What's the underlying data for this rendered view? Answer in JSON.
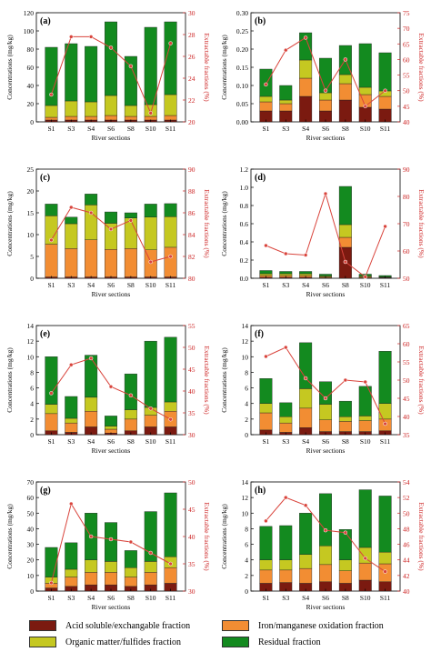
{
  "colors": {
    "acid": "#7b1a10",
    "iron": "#f28d33",
    "organic": "#c5c821",
    "residual": "#138a1f",
    "line": "#d9443c",
    "right_axis": "#cc2222"
  },
  "legend": {
    "acid": "Acid soluble/exchangable fraction",
    "iron": "Iron/manganese oxidation fraction",
    "organic": "Organic matter/fulfides fraction",
    "residual": "Residual fraction"
  },
  "chart_data": [
    {
      "type": "bar",
      "panel_label": "(a)",
      "categories": [
        "S1",
        "S3",
        "S4",
        "S6",
        "S8",
        "S10",
        "S11"
      ],
      "ylabel": "Concentrations (mg/kg)",
      "y2label": "Extractable fractions (%)",
      "xlabel": "River sections",
      "ylim": [
        0,
        120
      ],
      "yticks": [
        0,
        20,
        40,
        60,
        80,
        100,
        120
      ],
      "y2lim": [
        20,
        30
      ],
      "y2ticks": [
        20,
        22,
        24,
        26,
        28,
        30
      ],
      "stacks": {
        "acid": [
          2,
          2,
          2,
          2,
          2,
          2,
          2
        ],
        "iron": [
          3,
          4,
          4,
          5,
          4,
          4,
          5
        ],
        "organic": [
          13,
          17,
          16,
          22,
          12,
          13,
          23
        ],
        "residual": [
          64,
          63,
          61,
          81,
          54,
          85,
          80
        ]
      },
      "line": [
        22.5,
        27.8,
        27.8,
        26.8,
        25.1,
        20.8,
        27.2
      ]
    },
    {
      "type": "bar",
      "panel_label": "(b)",
      "categories": [
        "S1",
        "S3",
        "S4",
        "S6",
        "S8",
        "S10",
        "S11"
      ],
      "ylabel": "Concentrations (mg/kg)",
      "y2label": "Extractable fractions (%)",
      "xlabel": "River sections",
      "ylim": [
        0,
        0.3
      ],
      "yticks": [
        0.0,
        0.05,
        0.1,
        0.15,
        0.2,
        0.25,
        0.3
      ],
      "y2lim": [
        40,
        75
      ],
      "y2ticks": [
        40,
        45,
        50,
        55,
        60,
        65,
        70,
        75
      ],
      "stacks": {
        "acid": [
          0.03,
          0.03,
          0.07,
          0.03,
          0.06,
          0.04,
          0.035
        ],
        "iron": [
          0.025,
          0.02,
          0.05,
          0.03,
          0.045,
          0.035,
          0.035
        ],
        "organic": [
          0.015,
          0.01,
          0.05,
          0.02,
          0.025,
          0.02,
          0.015
        ],
        "residual": [
          0.075,
          0.04,
          0.075,
          0.095,
          0.08,
          0.12,
          0.105
        ]
      },
      "line": [
        52,
        63,
        67,
        50,
        60,
        45,
        50
      ]
    },
    {
      "type": "bar",
      "panel_label": "(c)",
      "categories": [
        "S1",
        "S3",
        "S4",
        "S6",
        "S8",
        "S10",
        "S11"
      ],
      "ylabel": "Concentrations (mg/kg)",
      "y2label": "Extractable fractions (%)",
      "xlabel": "River sections",
      "ylim": [
        0,
        25
      ],
      "yticks": [
        0,
        5,
        10,
        15,
        20,
        25
      ],
      "y2lim": [
        80,
        90
      ],
      "y2ticks": [
        80,
        82,
        84,
        86,
        88,
        90
      ],
      "stacks": {
        "acid": [
          0.3,
          0.3,
          0.3,
          0.3,
          0.3,
          0.3,
          0.3
        ],
        "iron": [
          7.5,
          6.5,
          8.5,
          6.3,
          6.5,
          6.2,
          6.8
        ],
        "organic": [
          6.5,
          5.7,
          8.0,
          6.0,
          7.0,
          7.5,
          7.0
        ],
        "residual": [
          2.7,
          1.5,
          2.5,
          2.6,
          1.2,
          3.0,
          3.0
        ]
      },
      "line": [
        83.5,
        86.5,
        86.0,
        84.5,
        85.3,
        81.5,
        82.0
      ]
    },
    {
      "type": "bar",
      "panel_label": "(d)",
      "categories": [
        "S1",
        "S3",
        "S4",
        "S6",
        "S8",
        "S10",
        "S11"
      ],
      "ylabel": "Concentrations (mg/kg)",
      "y2label": "Extractable fractions (%)",
      "xlabel": "River sections",
      "ylim": [
        0,
        1.2
      ],
      "yticks": [
        0.0,
        0.2,
        0.4,
        0.6,
        0.8,
        1.0,
        1.2
      ],
      "y2lim": [
        50,
        90
      ],
      "y2ticks": [
        50,
        60,
        70,
        80,
        90
      ],
      "stacks": {
        "acid": [
          0.01,
          0.01,
          0.01,
          0.005,
          0.34,
          0.005,
          0.005
        ],
        "iron": [
          0.02,
          0.02,
          0.02,
          0.01,
          0.11,
          0.01,
          0.005
        ],
        "organic": [
          0.02,
          0.02,
          0.02,
          0.01,
          0.14,
          0.01,
          0.005
        ],
        "residual": [
          0.035,
          0.025,
          0.025,
          0.02,
          0.42,
          0.02,
          0.015
        ]
      },
      "line": [
        62,
        59,
        58.5,
        81,
        56,
        50.5,
        69
      ]
    },
    {
      "type": "bar",
      "panel_label": "(e)",
      "categories": [
        "S1",
        "S3",
        "S4",
        "S6",
        "S8",
        "S10",
        "S11"
      ],
      "ylabel": "Concentrations (mg/kg)",
      "y2label": "Extractable fractions (%)",
      "xlabel": "River sections",
      "ylim": [
        0,
        14
      ],
      "yticks": [
        0,
        2,
        4,
        6,
        8,
        10,
        12,
        14
      ],
      "y2lim": [
        30,
        55
      ],
      "y2ticks": [
        30,
        35,
        40,
        45,
        50,
        55
      ],
      "stacks": {
        "acid": [
          0.5,
          0.3,
          1.0,
          0.2,
          0.5,
          1.0,
          1.0
        ],
        "iron": [
          2.2,
          1.2,
          2.0,
          0.5,
          1.5,
          1.5,
          2.0
        ],
        "organic": [
          1.2,
          0.6,
          1.8,
          0.4,
          1.2,
          1.0,
          1.2
        ],
        "residual": [
          6.1,
          2.8,
          5.4,
          1.3,
          4.6,
          8.5,
          8.3
        ]
      },
      "line": [
        39.5,
        46,
        47.5,
        41,
        39,
        36,
        33.5
      ]
    },
    {
      "type": "bar",
      "panel_label": "(f)",
      "categories": [
        "S1",
        "S3",
        "S4",
        "S6",
        "S8",
        "S10",
        "S11"
      ],
      "ylabel": "Concentrations (mg/kg)",
      "y2label": "Extractable fractions (%)",
      "xlabel": "River sections",
      "ylim": [
        0,
        14
      ],
      "yticks": [
        0,
        2,
        4,
        6,
        8,
        10,
        12,
        14
      ],
      "y2lim": [
        35,
        65
      ],
      "y2ticks": [
        35,
        40,
        45,
        50,
        55,
        60,
        65
      ],
      "stacks": {
        "acid": [
          0.6,
          0.3,
          0.9,
          0.4,
          0.4,
          0.4,
          0.5
        ],
        "iron": [
          2.2,
          1.2,
          2.5,
          1.5,
          1.3,
          1.4,
          1.5
        ],
        "organic": [
          1.2,
          0.8,
          2.5,
          2.0,
          0.6,
          0.6,
          2.0
        ],
        "residual": [
          3.2,
          1.8,
          5.9,
          2.9,
          2.0,
          3.8,
          6.7
        ]
      },
      "line": [
        56.5,
        59,
        50.5,
        45,
        50,
        49.5,
        38
      ]
    },
    {
      "type": "bar",
      "panel_label": "(g)",
      "categories": [
        "S1",
        "S3",
        "S4",
        "S6",
        "S8",
        "S10",
        "S11"
      ],
      "ylabel": "Concentrations (mg/kg)",
      "y2label": "Extractable fractions (%)",
      "xlabel": "River sections",
      "ylim": [
        0,
        70
      ],
      "yticks": [
        0,
        10,
        20,
        30,
        40,
        50,
        60,
        70
      ],
      "y2lim": [
        30,
        50
      ],
      "y2ticks": [
        30,
        35,
        40,
        45,
        50
      ],
      "stacks": {
        "acid": [
          2,
          3,
          4,
          4,
          3,
          4,
          5
        ],
        "iron": [
          3,
          6,
          8,
          8,
          6,
          8,
          10
        ],
        "organic": [
          4,
          5,
          8,
          7,
          6,
          7,
          7
        ],
        "residual": [
          19,
          17,
          30,
          25,
          11,
          32,
          41
        ]
      },
      "line": [
        31.5,
        46,
        40,
        39.5,
        39,
        37,
        35
      ]
    },
    {
      "type": "bar",
      "panel_label": "(h)",
      "categories": [
        "S1",
        "S3",
        "S4",
        "S6",
        "S8",
        "S10",
        "S11"
      ],
      "ylabel": "Concentrations (mg/kg)",
      "y2label": "Extractable fractions (%)",
      "xlabel": "River sections",
      "ylim": [
        0,
        14
      ],
      "yticks": [
        0,
        2,
        4,
        6,
        8,
        10,
        12,
        14
      ],
      "y2lim": [
        40,
        54
      ],
      "y2ticks": [
        40,
        42,
        44,
        46,
        48,
        50,
        52,
        54
      ],
      "stacks": {
        "acid": [
          1.0,
          1.1,
          1.0,
          1.2,
          1.0,
          1.4,
          1.2
        ],
        "iron": [
          1.7,
          1.6,
          1.9,
          2.2,
          1.6,
          2.2,
          2.3
        ],
        "organic": [
          1.3,
          1.3,
          1.8,
          2.4,
          1.4,
          2.0,
          1.5
        ],
        "residual": [
          4.3,
          4.4,
          5.3,
          6.7,
          3.9,
          7.4,
          7.2
        ]
      },
      "line": [
        49,
        52,
        51,
        47.8,
        47.5,
        44.2,
        42.5
      ]
    }
  ]
}
